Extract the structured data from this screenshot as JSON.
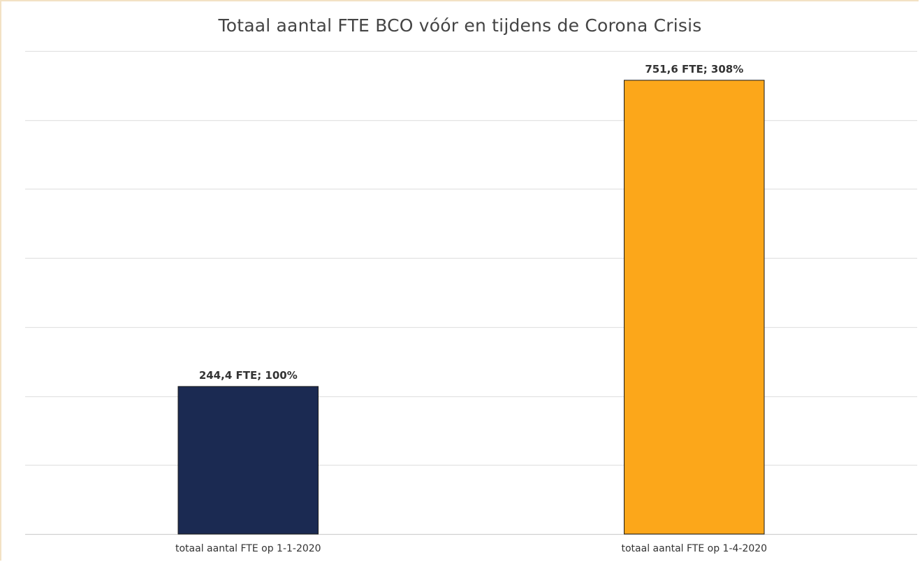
{
  "chart_data": {
    "type": "bar",
    "title": "Totaal aantal FTE BCO vóór en tijdens de Corona Crisis",
    "xlabel": "",
    "ylabel": "",
    "categories": [
      "totaal aantal FTE op 1-1-2020",
      "totaal aantal FTE op 1-4-2020"
    ],
    "values": [
      244.4,
      751.6
    ],
    "data_labels": [
      "244,4 FTE; 100%",
      "751,6 FTE; 308%"
    ],
    "colors": [
      "#1b2a52",
      "#fca71a"
    ],
    "ylim": [
      0,
      800
    ],
    "grid": true,
    "legend": "none"
  }
}
